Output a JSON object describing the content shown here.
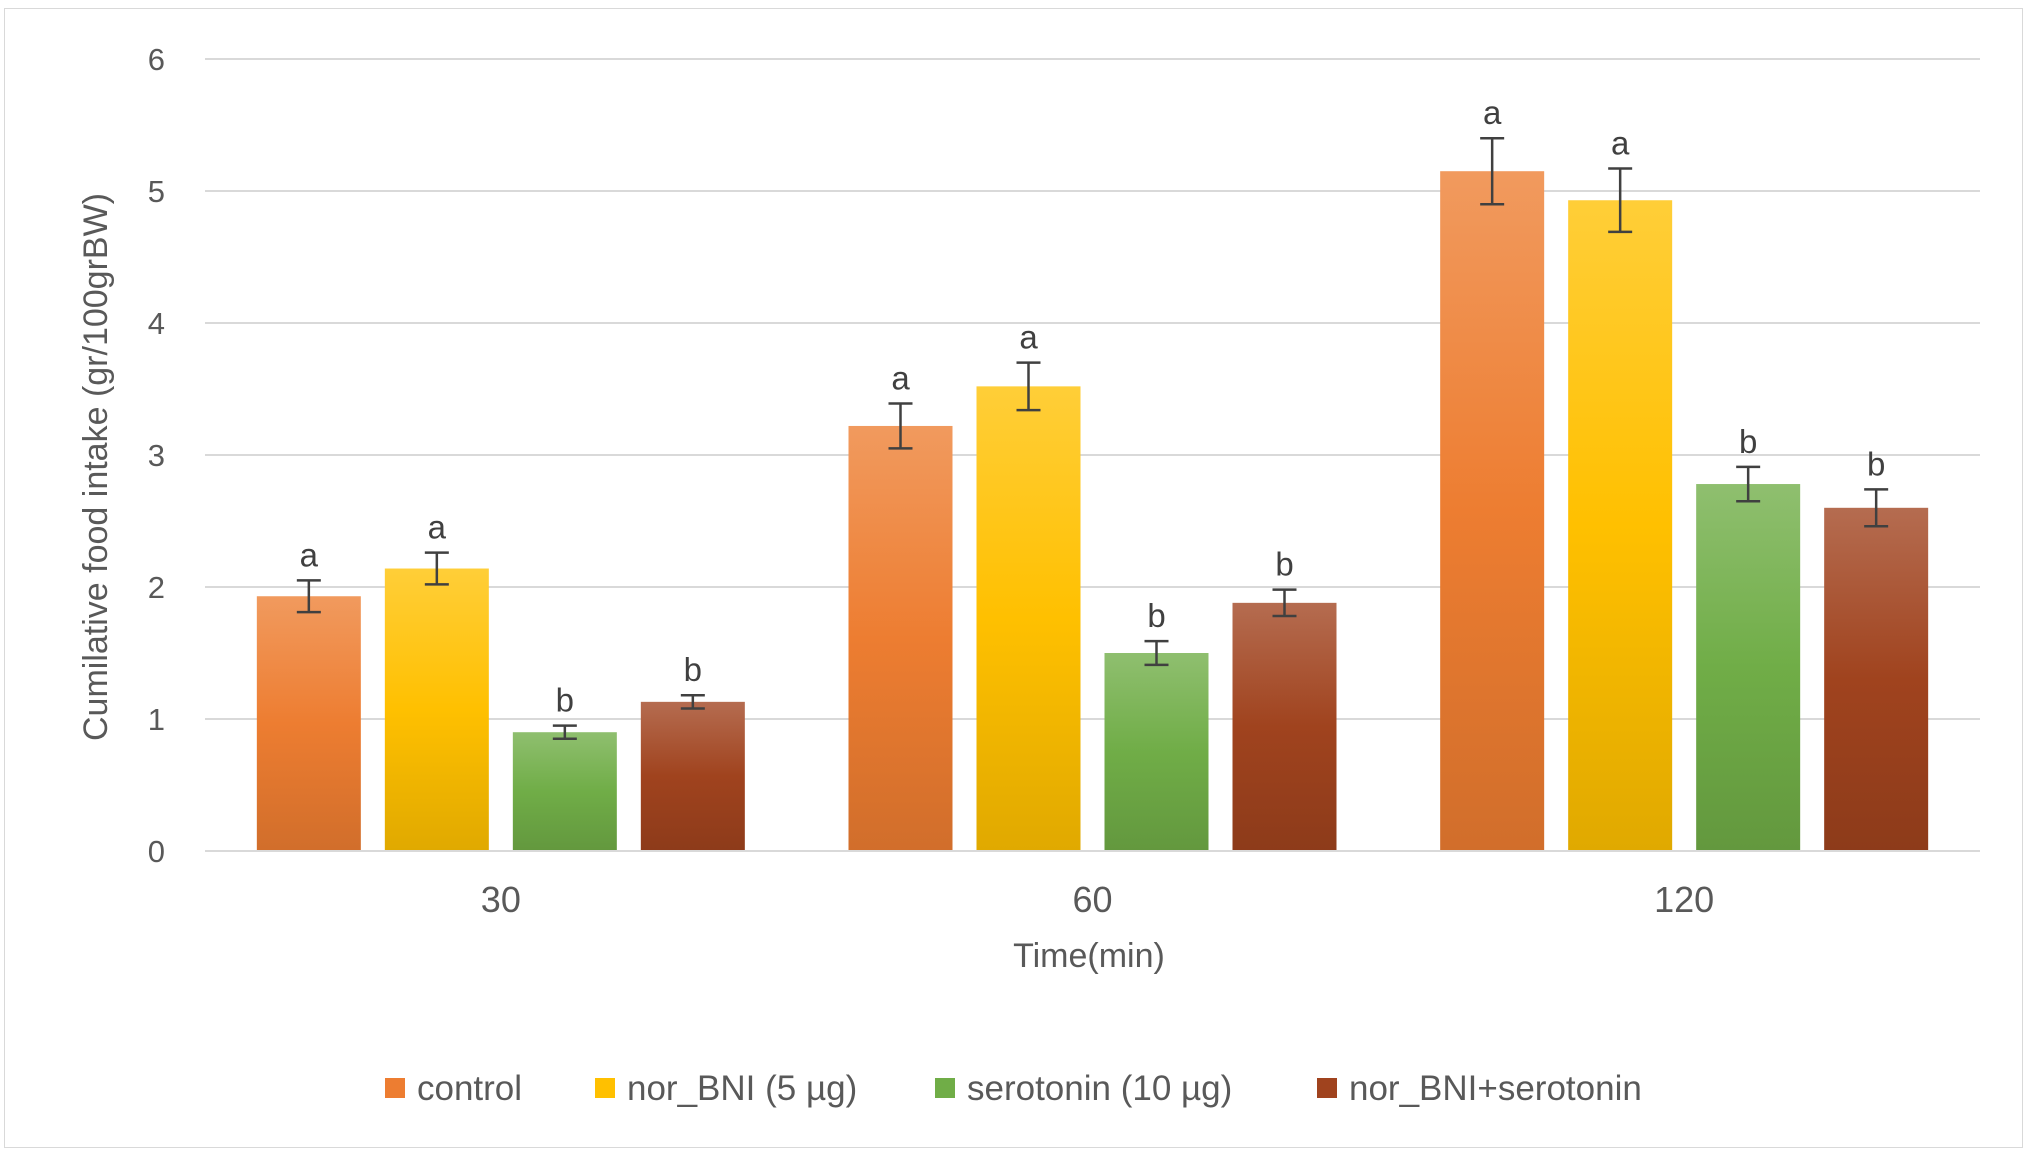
{
  "chart_data": {
    "type": "bar",
    "title": "",
    "xlabel": "Time(min)",
    "ylabel": "Cumilative food intake (gr/100grBW)",
    "categories": [
      "30",
      "60",
      "120"
    ],
    "ylim": [
      0,
      6
    ],
    "yticks": [
      "0",
      "1",
      "2",
      "3",
      "4",
      "5",
      "6"
    ],
    "grid": true,
    "legend_position": "bottom",
    "series": [
      {
        "name": "control",
        "color": "#ED7D31",
        "values": [
          1.93,
          3.22,
          5.15
        ],
        "errors": [
          0.12,
          0.17,
          0.25
        ],
        "sig": [
          "a",
          "a",
          "a"
        ]
      },
      {
        "name": "nor_BNI (5 µg)",
        "color": "#FFC000",
        "values": [
          2.14,
          3.52,
          4.93
        ],
        "errors": [
          0.12,
          0.18,
          0.24
        ],
        "sig": [
          "a",
          "a",
          "a"
        ]
      },
      {
        "name": "serotonin (10 µg)",
        "color": "#70AD47",
        "values": [
          0.9,
          1.5,
          2.78
        ],
        "errors": [
          0.05,
          0.09,
          0.13
        ],
        "sig": [
          "b",
          "b",
          "b"
        ]
      },
      {
        "name": "nor_BNI+serotonin",
        "color": "#A0431E",
        "values": [
          1.13,
          1.88,
          2.6
        ],
        "errors": [
          0.05,
          0.1,
          0.14
        ],
        "sig": [
          "b",
          "b",
          "b"
        ]
      }
    ]
  }
}
